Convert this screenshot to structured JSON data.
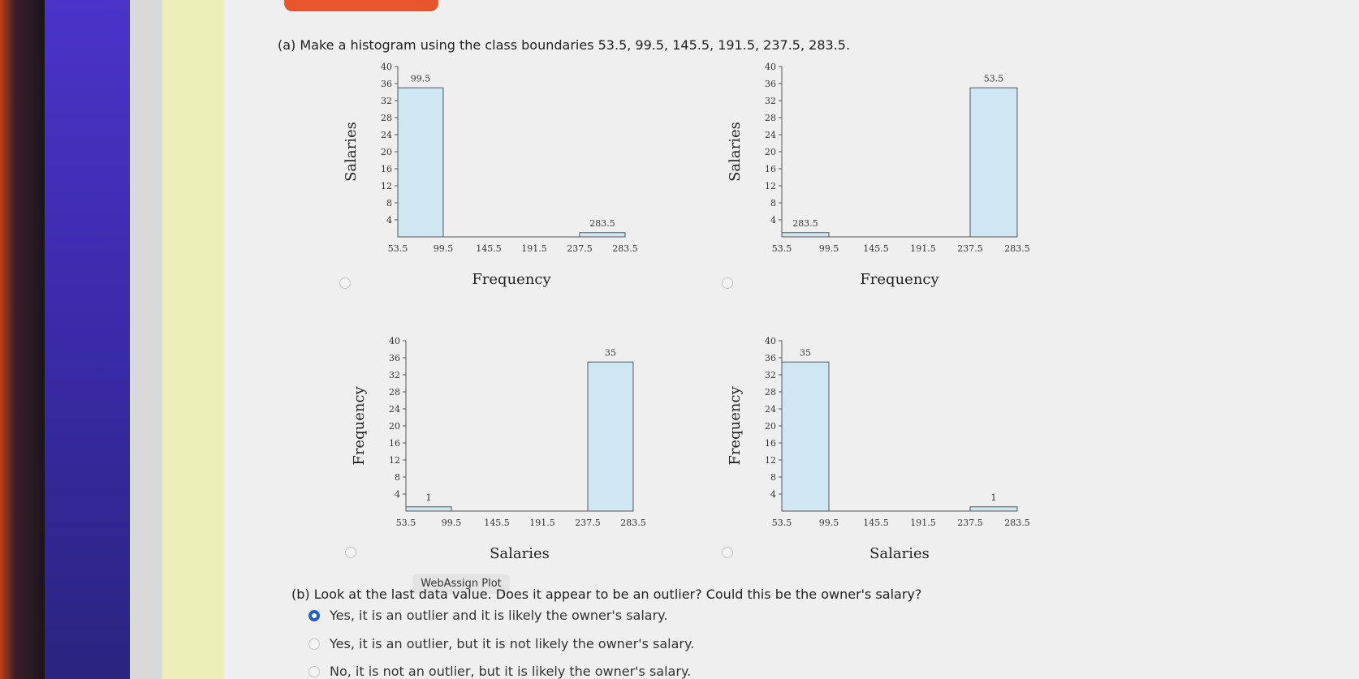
{
  "question_a": "(a) Make a histogram using the class boundaries 53.5, 99.5, 145.5, 191.5, 237.5, 283.5.",
  "question_b": "(b) Look at the last data value. Does it appear to be an outlier? Could this be the owner's salary?",
  "tooltip": "WebAssign Plot",
  "options": [
    {
      "label": "Yes, it is an outlier and it is likely the owner's salary.",
      "selected": true
    },
    {
      "label": "Yes, it is an outlier, but it is not likely the owner's salary.",
      "selected": false
    },
    {
      "label": "No, it is not an outlier, but it is likely the owner's salary.",
      "selected": false
    }
  ],
  "colors": {
    "bar_fill": "#cfe7f2",
    "bar_stroke": "#555555",
    "radio_selected": "#1f5fd6"
  },
  "chart_data": [
    {
      "type": "bar",
      "id": "chart-a1",
      "xlabel": "Frequency",
      "ylabel": "Salaries",
      "x_ticks": [
        "53.5",
        "99.5",
        "145.5",
        "191.5",
        "237.5",
        "283.5"
      ],
      "y_ticks": [
        "4",
        "8",
        "12",
        "16",
        "20",
        "24",
        "28",
        "32",
        "36",
        "40"
      ],
      "ylim": [
        0,
        40
      ],
      "selected": false,
      "bars": [
        {
          "value": 35,
          "label": "99.5"
        },
        {
          "value": 0,
          "label": ""
        },
        {
          "value": 0,
          "label": ""
        },
        {
          "value": 0,
          "label": ""
        },
        {
          "value": 1,
          "label": "283.5"
        }
      ]
    },
    {
      "type": "bar",
      "id": "chart-a2",
      "xlabel": "Frequency",
      "ylabel": "Salaries",
      "x_ticks": [
        "53.5",
        "99.5",
        "145.5",
        "191.5",
        "237.5",
        "283.5"
      ],
      "y_ticks": [
        "4",
        "8",
        "12",
        "16",
        "20",
        "24",
        "28",
        "32",
        "36",
        "40"
      ],
      "ylim": [
        0,
        40
      ],
      "selected": false,
      "bars": [
        {
          "value": 1,
          "label": "283.5"
        },
        {
          "value": 0,
          "label": ""
        },
        {
          "value": 0,
          "label": ""
        },
        {
          "value": 0,
          "label": ""
        },
        {
          "value": 35,
          "label": "53.5"
        }
      ]
    },
    {
      "type": "bar",
      "id": "chart-b1",
      "xlabel": "Salaries",
      "ylabel": "Frequency",
      "x_ticks": [
        "53.5",
        "99.5",
        "145.5",
        "191.5",
        "237.5",
        "283.5"
      ],
      "y_ticks": [
        "4",
        "8",
        "12",
        "16",
        "20",
        "24",
        "28",
        "32",
        "36",
        "40"
      ],
      "ylim": [
        0,
        40
      ],
      "selected": false,
      "bars": [
        {
          "value": 1,
          "label": "1"
        },
        {
          "value": 0,
          "label": ""
        },
        {
          "value": 0,
          "label": ""
        },
        {
          "value": 0,
          "label": ""
        },
        {
          "value": 35,
          "label": "35"
        }
      ]
    },
    {
      "type": "bar",
      "id": "chart-b2",
      "xlabel": "Salaries",
      "ylabel": "Frequency",
      "x_ticks": [
        "53.5",
        "99.5",
        "145.5",
        "191.5",
        "237.5",
        "283.5"
      ],
      "y_ticks": [
        "4",
        "8",
        "12",
        "16",
        "20",
        "24",
        "28",
        "32",
        "36",
        "40"
      ],
      "ylim": [
        0,
        40
      ],
      "selected": false,
      "bars": [
        {
          "value": 35,
          "label": "35"
        },
        {
          "value": 0,
          "label": ""
        },
        {
          "value": 0,
          "label": ""
        },
        {
          "value": 0,
          "label": ""
        },
        {
          "value": 1,
          "label": "1"
        }
      ]
    }
  ]
}
